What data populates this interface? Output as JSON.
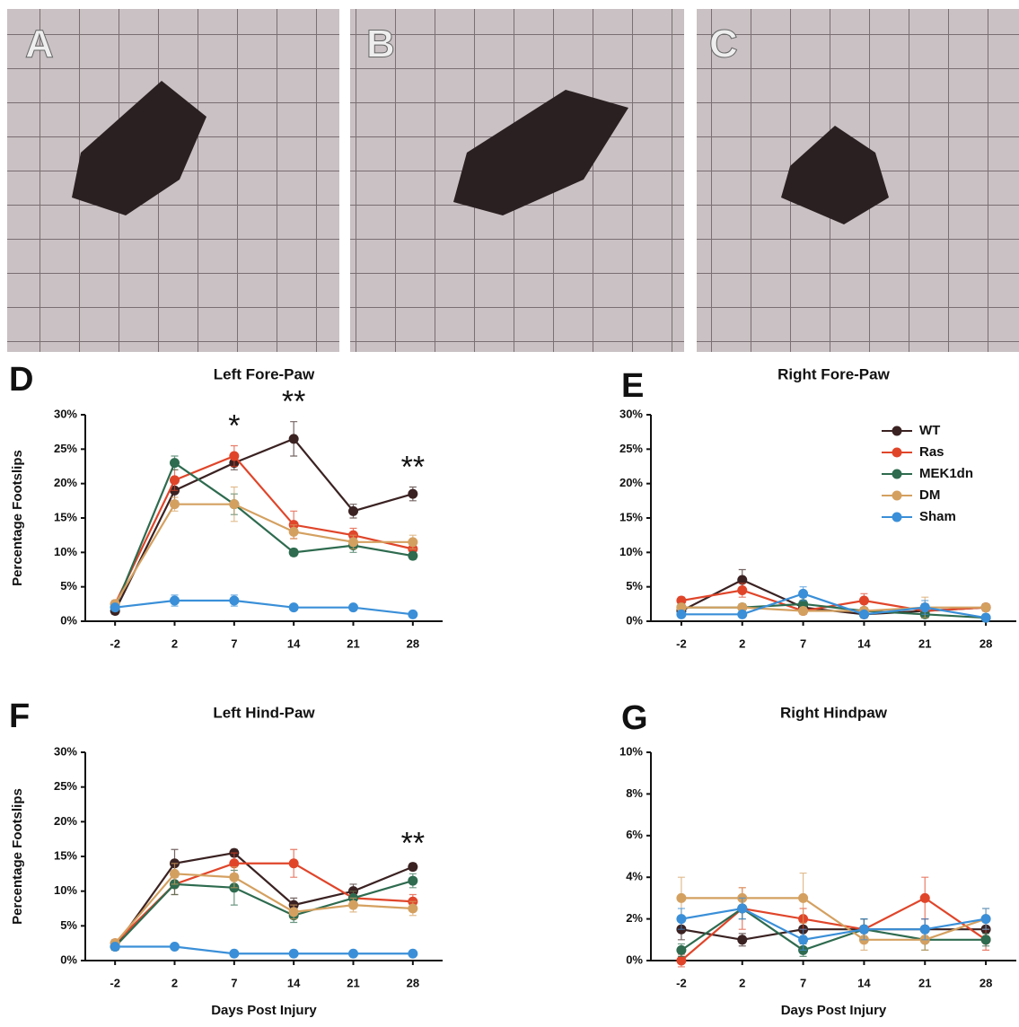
{
  "photos": [
    "A",
    "B",
    "C"
  ],
  "chart_data": [
    {
      "type": "line",
      "panel_label": "D",
      "title": "Left Fore-Paw",
      "y_label": "Percentage Footslips",
      "categories": [
        "-2",
        "2",
        "7",
        "14",
        "21",
        "28"
      ],
      "ylim": [
        0,
        30
      ],
      "yticks": [
        {
          "value": 0,
          "label": "0%"
        },
        {
          "value": 5,
          "label": "5%"
        },
        {
          "value": 10,
          "label": "10%"
        },
        {
          "value": 15,
          "label": "15%"
        },
        {
          "value": 20,
          "label": "20%"
        },
        {
          "value": 25,
          "label": "25%"
        },
        {
          "value": 30,
          "label": "30%"
        }
      ],
      "series": [
        {
          "name": "WT",
          "color": "#3b2222",
          "values": [
            1.5,
            19,
            23,
            26.5,
            16,
            18.5
          ],
          "errors": [
            0.5,
            1.5,
            1,
            2.5,
            1,
            1
          ]
        },
        {
          "name": "Ras",
          "color": "#e0452a",
          "values": [
            2.5,
            20.5,
            24,
            14,
            12.5,
            10.5
          ],
          "errors": [
            0.5,
            1.5,
            1.5,
            2,
            1,
            1
          ]
        },
        {
          "name": "MEK1dn",
          "color": "#2e6b4f",
          "values": [
            2,
            23,
            17,
            10,
            11,
            9.5
          ],
          "errors": [
            0.5,
            1,
            1.5,
            0.5,
            1,
            0.5
          ]
        },
        {
          "name": "DM",
          "color": "#d4a060",
          "values": [
            2.5,
            17,
            17,
            13,
            11.5,
            11.5
          ],
          "errors": [
            0.5,
            1,
            2.5,
            1,
            1,
            1
          ]
        },
        {
          "name": "Sham",
          "color": "#3a8fd8",
          "values": [
            2,
            3,
            3,
            2,
            2,
            1
          ],
          "errors": [
            0.3,
            0.8,
            0.8,
            0.3,
            0.3,
            0.3
          ]
        }
      ],
      "annotations": [
        {
          "text": "*",
          "at": "7"
        },
        {
          "text": "**",
          "at": "14"
        },
        {
          "text": "**",
          "at": "28"
        }
      ]
    },
    {
      "type": "line",
      "panel_label": "E",
      "title": "Right Fore-Paw",
      "legend": "top-right",
      "categories": [
        "-2",
        "2",
        "7",
        "14",
        "21",
        "28"
      ],
      "ylim": [
        0,
        30
      ],
      "yticks": [
        {
          "value": 0,
          "label": "0%"
        },
        {
          "value": 5,
          "label": "5%"
        },
        {
          "value": 10,
          "label": "10%"
        },
        {
          "value": 15,
          "label": "15%"
        },
        {
          "value": 20,
          "label": "20%"
        },
        {
          "value": 25,
          "label": "25%"
        },
        {
          "value": 30,
          "label": "30%"
        }
      ],
      "series": [
        {
          "name": "WT",
          "color": "#3b2222",
          "values": [
            1.5,
            6,
            2,
            1,
            1.5,
            2
          ],
          "errors": [
            0.5,
            1.5,
            1,
            0.5,
            1,
            0.5
          ]
        },
        {
          "name": "Ras",
          "color": "#e0452a",
          "values": [
            3,
            4.5,
            1.5,
            3,
            1.5,
            2
          ],
          "errors": [
            0.5,
            1,
            0.5,
            1,
            1,
            0.5
          ]
        },
        {
          "name": "MEK1dn",
          "color": "#2e6b4f",
          "values": [
            2,
            2,
            2.5,
            1.5,
            1,
            0.5
          ],
          "errors": [
            0.5,
            0.5,
            1,
            0.5,
            0.5,
            0.5
          ]
        },
        {
          "name": "DM",
          "color": "#d4a060",
          "values": [
            2,
            2,
            1.5,
            1.5,
            2,
            2
          ],
          "errors": [
            0.5,
            0.5,
            0.5,
            0.5,
            1.5,
            0.5
          ]
        },
        {
          "name": "Sham",
          "color": "#3a8fd8",
          "values": [
            1,
            1,
            4,
            1,
            2,
            0.5
          ],
          "errors": [
            0.3,
            0.3,
            1,
            0.3,
            1,
            0.3
          ]
        }
      ]
    },
    {
      "type": "line",
      "panel_label": "F",
      "title": "Left Hind-Paw",
      "y_label": "Percentage Footslips",
      "x_label": "Days Post Injury",
      "categories": [
        "-2",
        "2",
        "7",
        "14",
        "21",
        "28"
      ],
      "ylim": [
        0,
        30
      ],
      "yticks": [
        {
          "value": 0,
          "label": "0%"
        },
        {
          "value": 5,
          "label": "5%"
        },
        {
          "value": 10,
          "label": "10%"
        },
        {
          "value": 15,
          "label": "15%"
        },
        {
          "value": 20,
          "label": "20%"
        },
        {
          "value": 25,
          "label": "25%"
        },
        {
          "value": 30,
          "label": "30%"
        }
      ],
      "series": [
        {
          "name": "WT",
          "color": "#3b2222",
          "values": [
            2,
            14,
            15.5,
            8,
            10,
            13.5
          ],
          "errors": [
            0.5,
            2,
            0.5,
            1,
            1,
            0.5
          ]
        },
        {
          "name": "Ras",
          "color": "#e0452a",
          "values": [
            2.5,
            11,
            14,
            14,
            9,
            8.5
          ],
          "errors": [
            0.5,
            1.5,
            1.5,
            2,
            1,
            1
          ]
        },
        {
          "name": "MEK1dn",
          "color": "#2e6b4f",
          "values": [
            2,
            11,
            10.5,
            6.5,
            9,
            11.5
          ],
          "errors": [
            0.5,
            1.5,
            2.5,
            1,
            1,
            1
          ]
        },
        {
          "name": "DM",
          "color": "#d4a060",
          "values": [
            2.5,
            12.5,
            12,
            7,
            8,
            7.5
          ],
          "errors": [
            0.5,
            1.5,
            1.5,
            1,
            1,
            1
          ]
        },
        {
          "name": "Sham",
          "color": "#3a8fd8",
          "values": [
            2,
            2,
            1,
            1,
            1,
            1
          ],
          "errors": [
            0.3,
            0.3,
            0.3,
            0.3,
            0.3,
            0.3
          ]
        }
      ],
      "annotations": [
        {
          "text": "**",
          "at": "28"
        }
      ]
    },
    {
      "type": "line",
      "panel_label": "G",
      "title": "Right Hindpaw",
      "x_label": "Days Post Injury",
      "categories": [
        "-2",
        "2",
        "7",
        "14",
        "21",
        "28"
      ],
      "ylim": [
        0,
        10
      ],
      "yticks": [
        {
          "value": 0,
          "label": "0%"
        },
        {
          "value": 2,
          "label": "2%"
        },
        {
          "value": 4,
          "label": "4%"
        },
        {
          "value": 6,
          "label": "6%"
        },
        {
          "value": 8,
          "label": "8%"
        },
        {
          "value": 10,
          "label": "10%"
        }
      ],
      "series": [
        {
          "name": "WT",
          "color": "#3b2222",
          "values": [
            1.5,
            1,
            1.5,
            1.5,
            1.5,
            1.5
          ],
          "errors": [
            0.5,
            0.3,
            0.5,
            0.5,
            0.5,
            0.5
          ]
        },
        {
          "name": "Ras",
          "color": "#e0452a",
          "values": [
            0,
            2.5,
            2,
            1.5,
            3,
            1
          ],
          "errors": [
            0.3,
            1,
            0.5,
            0.5,
            1,
            0.5
          ]
        },
        {
          "name": "MEK1dn",
          "color": "#2e6b4f",
          "values": [
            0.5,
            2.5,
            0.5,
            1.5,
            1,
            1
          ],
          "errors": [
            0.3,
            0.5,
            0.3,
            0.5,
            0.5,
            0.3
          ]
        },
        {
          "name": "DM",
          "color": "#d4a060",
          "values": [
            3,
            3,
            3,
            1,
            1,
            2
          ],
          "errors": [
            1,
            0.5,
            1.2,
            0.5,
            0.5,
            0.5
          ]
        },
        {
          "name": "Sham",
          "color": "#3a8fd8",
          "values": [
            2,
            2.5,
            1,
            1.5,
            1.5,
            2
          ],
          "errors": [
            0.5,
            0.5,
            0.5,
            0.5,
            0.5,
            0.5
          ]
        }
      ]
    }
  ]
}
